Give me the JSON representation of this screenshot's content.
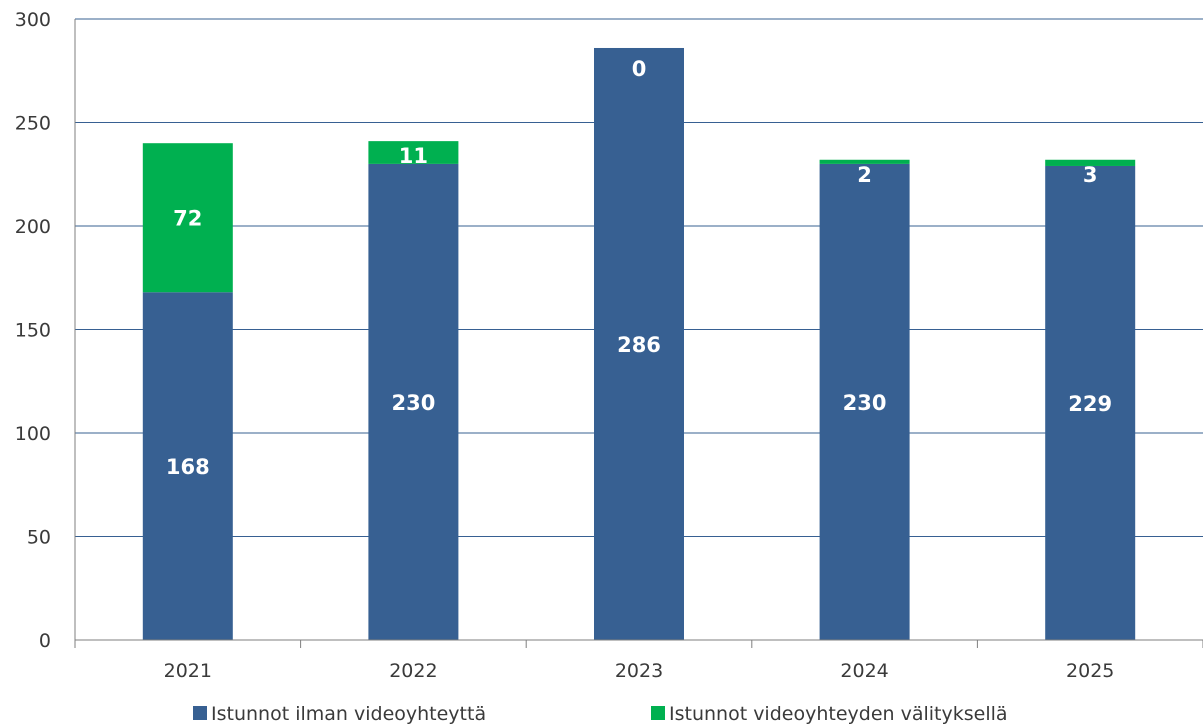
{
  "chart_data": {
    "type": "bar",
    "stacked": true,
    "categories": [
      "2021",
      "2022",
      "2023",
      "2024",
      "2025"
    ],
    "series": [
      {
        "name": "Istunnot ilman videoyhteyttä",
        "values": [
          168,
          230,
          286,
          230,
          229
        ],
        "color": "#376092"
      },
      {
        "name": "Istunnot videoyhteyden välityksellä",
        "values": [
          72,
          11,
          0,
          2,
          3
        ],
        "color": "#00b050"
      }
    ],
    "data_labels": [
      [
        "168",
        "230",
        "286",
        "230",
        "229"
      ],
      [
        "72",
        "11",
        "0",
        "2",
        "3"
      ]
    ],
    "ylim": [
      0,
      300
    ],
    "yticks": [
      0,
      50,
      100,
      150,
      200,
      250,
      300
    ],
    "title": "",
    "xlabel": "",
    "ylabel": "",
    "grid": true,
    "legend_position": "bottom",
    "colors": {
      "grid": "#376092",
      "axis": "#7f7f7f"
    }
  }
}
